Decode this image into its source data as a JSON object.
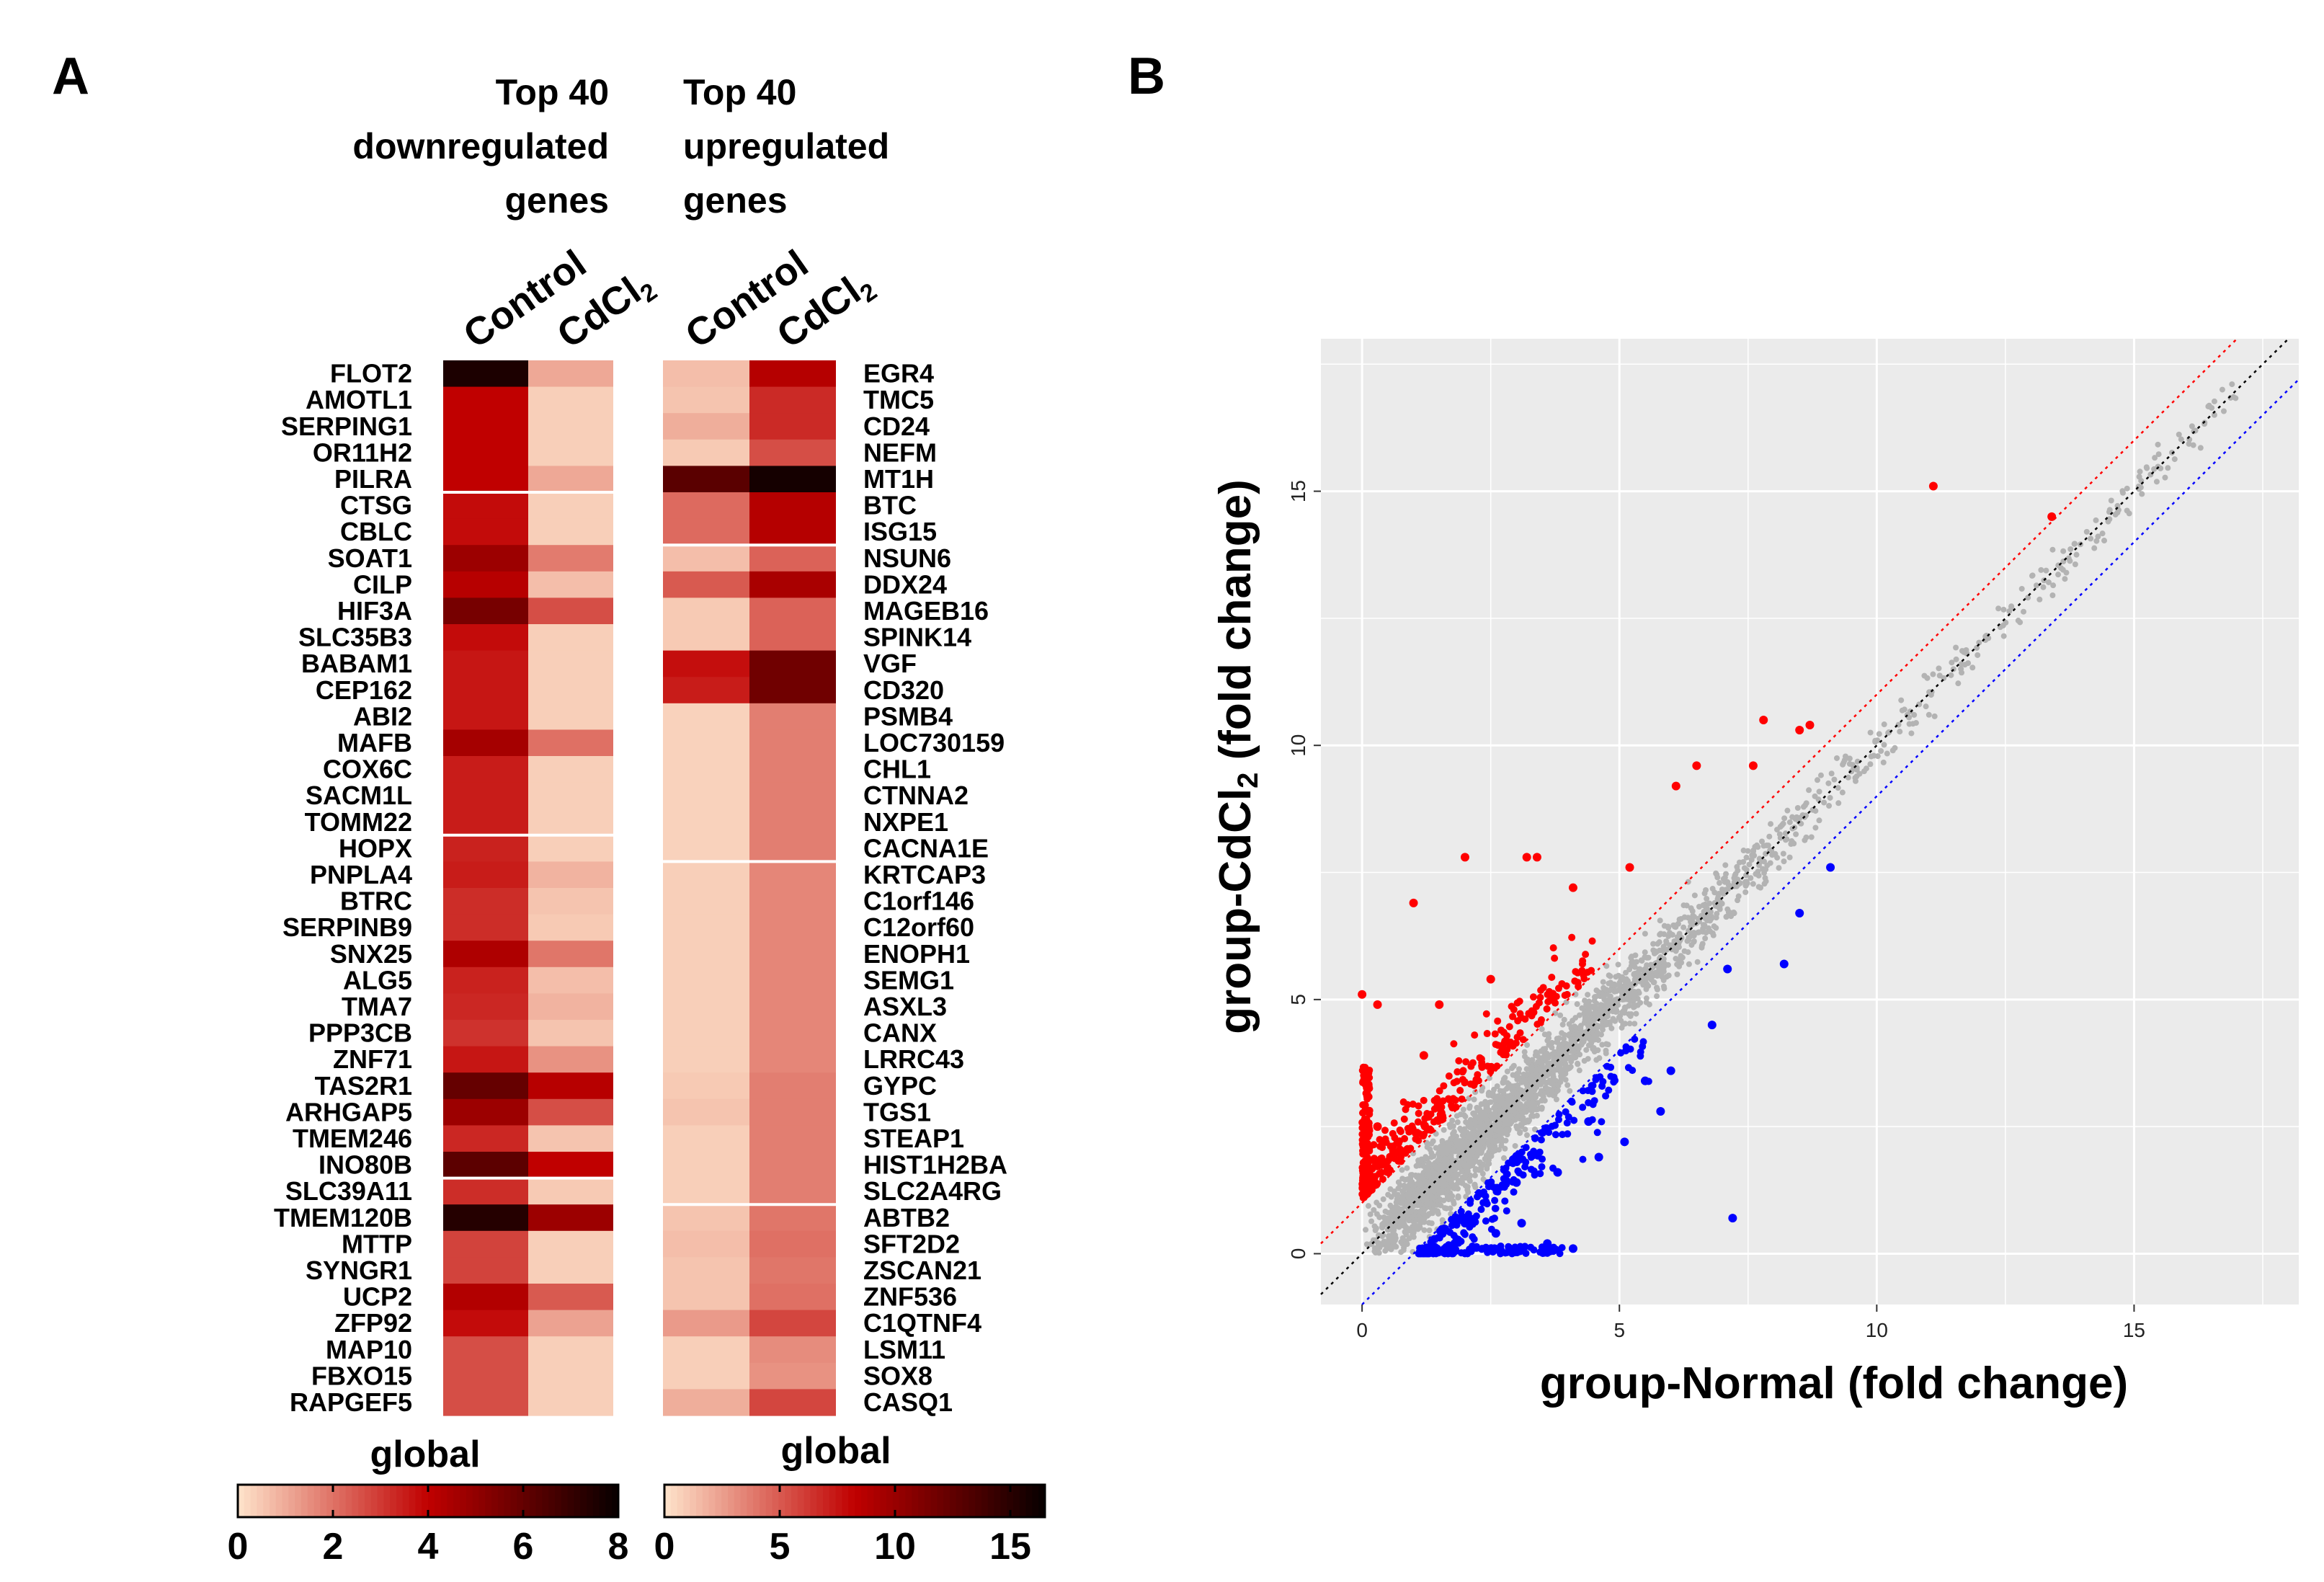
{
  "panels": {
    "a_label": "A",
    "b_label": "B"
  },
  "heatmap_left": {
    "title_lines": [
      "Top 40",
      "downregulated",
      "genes"
    ],
    "columns": [
      "Control",
      "CdCl"
    ],
    "column_subscript": "2",
    "colorbar_title": "global",
    "colorbar_ticks": [
      "0",
      "2",
      "4",
      "6",
      "8"
    ]
  },
  "heatmap_right": {
    "title_lines": [
      "Top 40",
      "upregulated",
      "genes"
    ],
    "columns": [
      "Control",
      "CdCl"
    ],
    "column_subscript": "2",
    "colorbar_title": "global",
    "colorbar_ticks": [
      "0",
      "5",
      "10",
      "15"
    ]
  },
  "scatter": {
    "xlabel": "group-Normal (fold change)",
    "ylabel_main": "group-CdCl",
    "ylabel_sub": "2",
    "ylabel_rest": "  (fold change)",
    "xticks": [
      "0",
      "5",
      "10",
      "15"
    ],
    "yticks": [
      "0",
      "5",
      "10",
      "15"
    ]
  },
  "colors": {
    "heat_low": "#fde0c8",
    "heat_mid": "#c00000",
    "heat_high": "#0a0000",
    "panel_bg": "#ebebeb",
    "grid": "#ffffff",
    "up": "#ff0000",
    "down": "#0000ff",
    "ns": "#b3b3b3"
  },
  "chart_data": [
    {
      "type": "heatmap",
      "title": "Top 40 downregulated genes",
      "columns": [
        "Control",
        "CdCl2"
      ],
      "scale": [
        0,
        8
      ],
      "genes": [
        "FLOT2",
        "AMOTL1",
        "SERPING1",
        "OR11H2",
        "PILRA",
        "CTSG",
        "CBLC",
        "SOAT1",
        "CILP",
        "HIF3A",
        "SLC35B3",
        "BABAM1",
        "CEP162",
        "ABI2",
        "MAFB",
        "COX6C",
        "SACM1L",
        "TOMM22",
        "HOPX",
        "PNPLA4",
        "BTRC",
        "SERPINB9",
        "SNX25",
        "ALG5",
        "TMA7",
        "PPP3CB",
        "ZNF71",
        "TAS2R1",
        "ARHGAP5",
        "TMEM246",
        "INO80B",
        "SLC39A11",
        "TMEM120B",
        "MTTP",
        "SYNGR1",
        "UCP2",
        "ZFP92",
        "MAP10",
        "FBXO15",
        "RAPGEF5"
      ],
      "values": [
        [
          7.6,
          1.0
        ],
        [
          4.0,
          0.3
        ],
        [
          4.0,
          0.3
        ],
        [
          4.0,
          0.3
        ],
        [
          4.0,
          1.0
        ],
        [
          3.8,
          0.3
        ],
        [
          3.8,
          0.3
        ],
        [
          4.8,
          1.8
        ],
        [
          4.2,
          0.6
        ],
        [
          5.6,
          2.6
        ],
        [
          3.8,
          0.3
        ],
        [
          3.6,
          0.3
        ],
        [
          3.6,
          0.3
        ],
        [
          3.6,
          0.3
        ],
        [
          4.6,
          2.0
        ],
        [
          3.5,
          0.3
        ],
        [
          3.5,
          0.3
        ],
        [
          3.5,
          0.3
        ],
        [
          3.4,
          0.3
        ],
        [
          3.5,
          0.8
        ],
        [
          3.2,
          0.5
        ],
        [
          3.2,
          0.4
        ],
        [
          4.4,
          1.9
        ],
        [
          3.4,
          0.6
        ],
        [
          3.3,
          0.8
        ],
        [
          3.1,
          0.5
        ],
        [
          3.6,
          1.4
        ],
        [
          6.0,
          4.2
        ],
        [
          4.8,
          2.6
        ],
        [
          3.3,
          0.5
        ],
        [
          6.2,
          4.0
        ],
        [
          3.2,
          0.4
        ],
        [
          7.4,
          4.8
        ],
        [
          2.8,
          0.3
        ],
        [
          2.8,
          0.3
        ],
        [
          4.3,
          2.4
        ],
        [
          3.8,
          1.1
        ],
        [
          2.6,
          0.3
        ],
        [
          2.6,
          0.3
        ],
        [
          2.6,
          0.3
        ]
      ]
    },
    {
      "type": "heatmap",
      "title": "Top 40 upregulated genes",
      "columns": [
        "Control",
        "CdCl2"
      ],
      "scale": [
        0,
        16
      ],
      "genes": [
        "EGR4",
        "TMC5",
        "CD24",
        "NEFM",
        "MT1H",
        "BTC",
        "ISG15",
        "NSUN6",
        "DDX24",
        "MAGEB16",
        "SPINK14",
        "VGF",
        "CD320",
        "PSMB4",
        "LOC730159",
        "CHL1",
        "CTNNA2",
        "NXPE1",
        "CACNA1E",
        "KRTCAP3",
        "C1orf146",
        "C12orf60",
        "ENOPH1",
        "SEMG1",
        "ASXL3",
        "CANX",
        "LRRC43",
        "GYPC",
        "TGS1",
        "STEAP1",
        "HIST1H2BA",
        "SLC2A4RG",
        "ABTB2",
        "SFT2D2",
        "ZSCAN21",
        "ZNF536",
        "C1QTNF4",
        "LSM11",
        "SOX8",
        "CASQ1"
      ],
      "values": [
        [
          1.2,
          8.5
        ],
        [
          1.0,
          6.5
        ],
        [
          1.8,
          6.5
        ],
        [
          0.8,
          5.2
        ],
        [
          12.5,
          15.5
        ],
        [
          4.2,
          8.5
        ],
        [
          4.2,
          8.5
        ],
        [
          1.2,
          4.5
        ],
        [
          4.8,
          9.0
        ],
        [
          0.8,
          4.5
        ],
        [
          0.8,
          4.5
        ],
        [
          7.5,
          11.5
        ],
        [
          7.0,
          11.5
        ],
        [
          0.5,
          3.5
        ],
        [
          0.5,
          3.5
        ],
        [
          0.5,
          3.5
        ],
        [
          0.5,
          3.5
        ],
        [
          0.5,
          3.5
        ],
        [
          0.5,
          3.5
        ],
        [
          0.6,
          3.2
        ],
        [
          0.6,
          3.2
        ],
        [
          0.6,
          3.2
        ],
        [
          0.6,
          3.2
        ],
        [
          0.6,
          3.2
        ],
        [
          0.6,
          3.2
        ],
        [
          0.6,
          3.2
        ],
        [
          0.6,
          3.2
        ],
        [
          0.8,
          3.5
        ],
        [
          1.0,
          3.5
        ],
        [
          0.6,
          3.5
        ],
        [
          0.6,
          3.5
        ],
        [
          0.6,
          3.5
        ],
        [
          1.0,
          3.8
        ],
        [
          1.2,
          4.0
        ],
        [
          1.0,
          3.8
        ],
        [
          1.0,
          4.0
        ],
        [
          2.5,
          5.5
        ],
        [
          0.6,
          3.0
        ],
        [
          0.6,
          2.8
        ],
        [
          1.8,
          5.5
        ]
      ]
    },
    {
      "type": "scatter",
      "title": "",
      "xlabel": "group-Normal (fold change)",
      "ylabel": "group-CdCl2  (fold change)",
      "xlim": [
        -0.8,
        18.2
      ],
      "ylim": [
        -1.0,
        18.0
      ],
      "reference_lines": [
        {
          "slope": 1,
          "intercept": 0,
          "name": "identity"
        },
        {
          "slope": 1,
          "intercept": 1,
          "name": "upper-threshold"
        },
        {
          "slope": 1,
          "intercept": -1,
          "name": "lower-threshold"
        }
      ],
      "n_background_points": 2600,
      "series": [
        {
          "name": "up",
          "color": "#ff0000",
          "points": [
            [
              11.1,
              15.1
            ],
            [
              13.4,
              14.5
            ],
            [
              7.8,
              10.5
            ],
            [
              8.5,
              10.3
            ],
            [
              8.7,
              10.4
            ],
            [
              6.5,
              9.6
            ],
            [
              7.6,
              9.6
            ],
            [
              2.0,
              7.8
            ],
            [
              3.2,
              7.8
            ],
            [
              3.4,
              7.8
            ],
            [
              1.0,
              6.9
            ],
            [
              0.0,
              5.1
            ],
            [
              0.3,
              4.9
            ],
            [
              1.5,
              4.9
            ],
            [
              6.1,
              9.2
            ],
            [
              4.1,
              7.2
            ],
            [
              5.2,
              7.6
            ],
            [
              2.5,
              5.4
            ],
            [
              1.2,
              3.9
            ],
            [
              0.3,
              2.5
            ]
          ]
        },
        {
          "name": "down",
          "color": "#0000ff",
          "points": [
            [
              7.2,
              0.7
            ],
            [
              6.8,
              4.5
            ],
            [
              5.5,
              3.4
            ],
            [
              5.8,
              2.8
            ],
            [
              5.1,
              2.2
            ],
            [
              4.6,
              1.9
            ],
            [
              4.1,
              0.1
            ],
            [
              3.6,
              0.2
            ],
            [
              6.0,
              3.6
            ],
            [
              8.2,
              5.7
            ],
            [
              8.5,
              6.7
            ],
            [
              9.1,
              7.6
            ],
            [
              7.1,
              5.6
            ],
            [
              3.8,
              1.6
            ],
            [
              3.1,
              0.6
            ],
            [
              2.6,
              0.4
            ],
            [
              1.8,
              0.2
            ],
            [
              4.4,
              2.6
            ],
            [
              3.0,
              1.4
            ],
            [
              2.0,
              0.6
            ]
          ]
        }
      ]
    }
  ]
}
